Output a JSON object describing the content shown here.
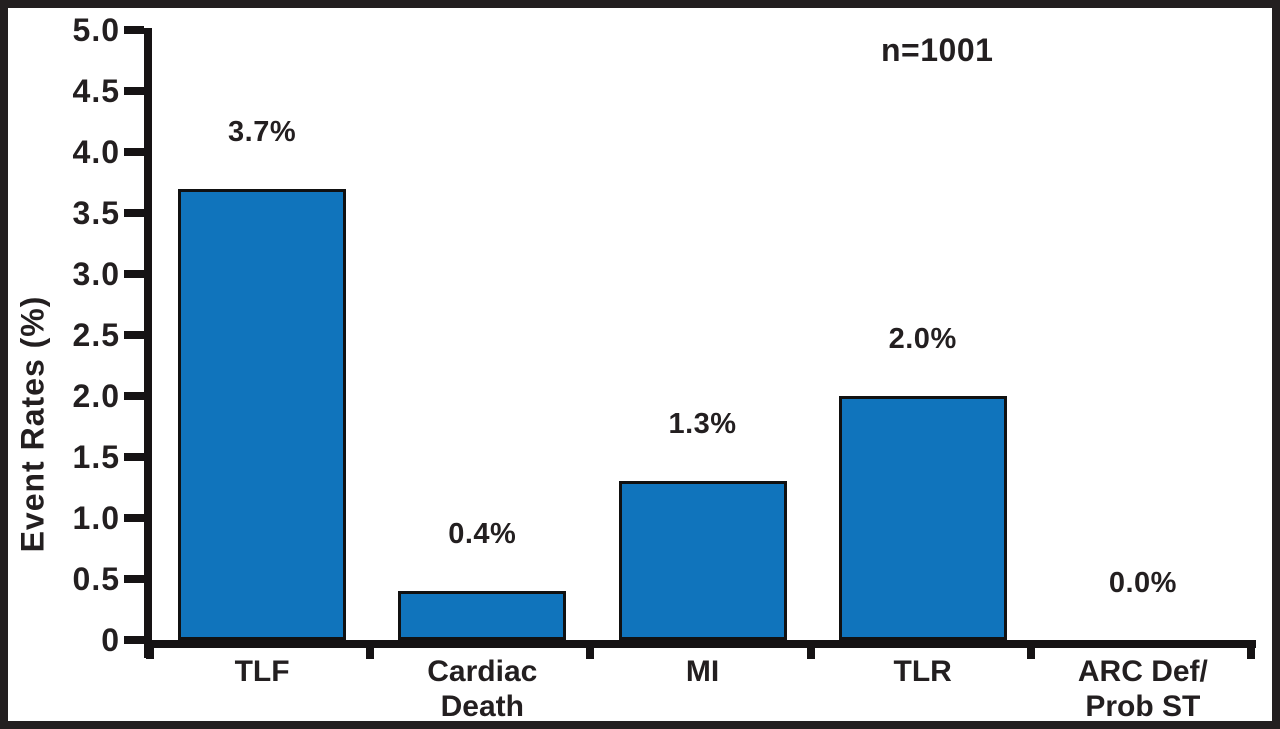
{
  "chart_data": {
    "type": "bar",
    "title": "",
    "ylabel": "Event Rates (%)",
    "xlabel": "",
    "annotation": "n=1001",
    "categories": [
      "TLF",
      "Cardiac\nDeath",
      "MI",
      "TLR",
      "ARC Def/\nProb ST"
    ],
    "values": [
      3.7,
      0.4,
      1.3,
      2.0,
      0.0
    ],
    "value_labels": [
      "3.7%",
      "0.4%",
      "1.3%",
      "2.0%",
      "0.0%"
    ],
    "ylim": [
      0,
      5
    ],
    "yticks": [
      5.0,
      4.5,
      4.0,
      3.5,
      3.0,
      2.5,
      2.0,
      1.5,
      1.0,
      0.5,
      0
    ],
    "ytick_labels": [
      "5.0",
      "4.5",
      "4.0",
      "3.5",
      "3.0",
      "2.5",
      "2.0",
      "1.5",
      "1.0",
      "0.5",
      "0"
    ],
    "grid": false,
    "legend_position": "none",
    "colors": {
      "bar_fill": "#1074BC",
      "bar_border": "#111111",
      "axis": "#161314",
      "text": "#231F20",
      "frame_border": "#231F20",
      "background": "#FFFFFF"
    }
  }
}
